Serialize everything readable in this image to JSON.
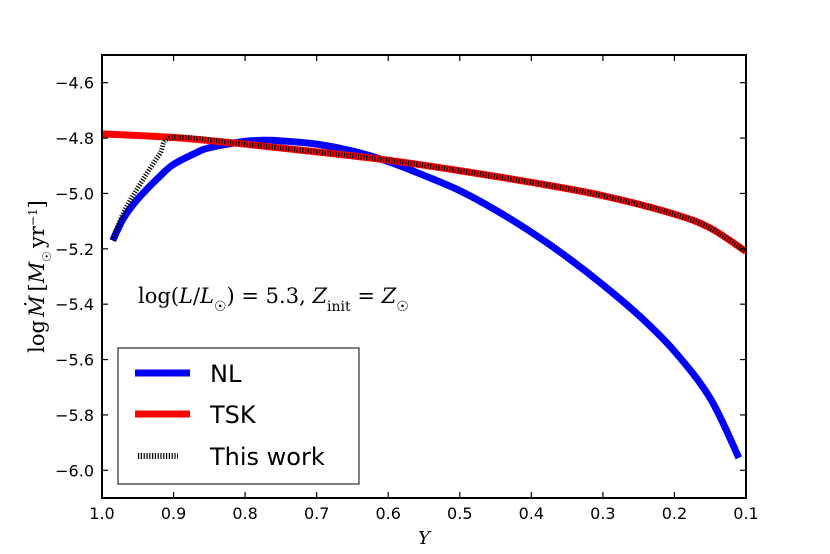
{
  "chart_data": {
    "type": "line",
    "title": "",
    "xlabel": "Y",
    "ylabel": "log Ṁ [M☉ yr⁻¹]",
    "xlim": [
      1.0,
      0.1
    ],
    "ylim": [
      -6.1,
      -4.5
    ],
    "x_reversed": true,
    "xticks": [
      1.0,
      0.9,
      0.8,
      0.7,
      0.6,
      0.5,
      0.4,
      0.3,
      0.2,
      0.1
    ],
    "yticks": [
      -6.0,
      -5.8,
      -5.6,
      -5.4,
      -5.2,
      -5.0,
      -4.8,
      -4.6
    ],
    "xtick_labels": [
      "1.0",
      "0.9",
      "0.8",
      "0.7",
      "0.6",
      "0.5",
      "0.4",
      "0.3",
      "0.2",
      "0.1"
    ],
    "ytick_labels": [
      "−6.0",
      "−5.8",
      "−5.6",
      "−5.4",
      "−5.2",
      "−5.0",
      "−4.8",
      "−4.6"
    ],
    "annotation": "log(L/L☉) = 5.3, Z_init = Z☉",
    "legend_position": "lower-left",
    "grid": false,
    "series": [
      {
        "name": "NL",
        "color": "#0000ff",
        "style": "solid",
        "x": [
          0.985,
          0.97,
          0.95,
          0.92,
          0.9,
          0.87,
          0.85,
          0.8,
          0.77,
          0.75,
          0.7,
          0.65,
          0.6,
          0.55,
          0.5,
          0.45,
          0.4,
          0.35,
          0.3,
          0.25,
          0.2,
          0.15,
          0.11
        ],
        "y": [
          -5.17,
          -5.09,
          -5.02,
          -4.94,
          -4.895,
          -4.855,
          -4.835,
          -4.812,
          -4.808,
          -4.81,
          -4.822,
          -4.847,
          -4.885,
          -4.935,
          -4.99,
          -5.06,
          -5.14,
          -5.23,
          -5.33,
          -5.44,
          -5.57,
          -5.74,
          -5.955
        ]
      },
      {
        "name": "TSK",
        "color": "#ff0000",
        "style": "solid",
        "x": [
          1.0,
          0.9,
          0.8,
          0.7,
          0.6,
          0.5,
          0.4,
          0.3,
          0.2,
          0.15,
          0.1
        ],
        "y": [
          -4.785,
          -4.798,
          -4.822,
          -4.85,
          -4.88,
          -4.918,
          -4.96,
          -5.008,
          -5.075,
          -5.125,
          -5.21
        ]
      },
      {
        "name": "This work",
        "color": "#000000",
        "style": "dotted",
        "x": [
          0.985,
          0.97,
          0.95,
          0.92,
          0.9,
          0.8,
          0.7,
          0.6,
          0.5,
          0.4,
          0.3,
          0.2,
          0.15,
          0.1
        ],
        "y": [
          -5.17,
          -5.07,
          -4.98,
          -4.86,
          -4.798,
          -4.822,
          -4.85,
          -4.88,
          -4.918,
          -4.96,
          -5.008,
          -5.075,
          -5.125,
          -5.21
        ]
      }
    ]
  }
}
